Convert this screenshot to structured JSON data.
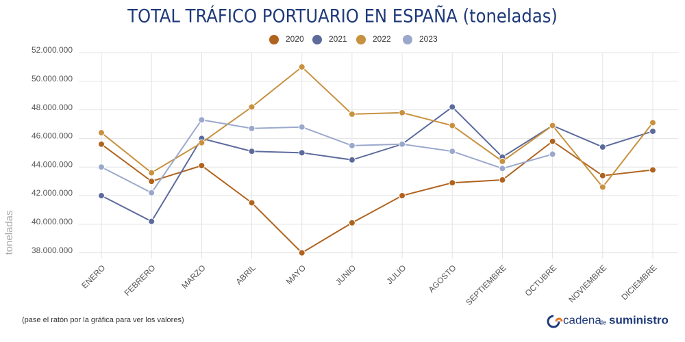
{
  "chart_data": {
    "type": "line",
    "title": "TOTAL TRÁFICO PORTUARIO EN ESPAÑA (toneladas)",
    "y_label": "toneladas",
    "note": "(pase el ratón por la gráfica para ver los valores)",
    "logo": {
      "part1": "cadena",
      "part2": "de",
      "part3": "suministro"
    },
    "categories": [
      "ENERO",
      "FEBRERO",
      "MARZO",
      "ABRIL",
      "MAYO",
      "JUNIO",
      "JULIO",
      "AGOSTO",
      "SEPTIEMBRE",
      "OCTUBRE",
      "NOVIEMBRE",
      "DICIEMBRE"
    ],
    "series": [
      {
        "name": "2020",
        "color": "#b0631f",
        "values": [
          45600000,
          43000000,
          44100000,
          41500000,
          38000000,
          40100000,
          42000000,
          42900000,
          43100000,
          45800000,
          43400000,
          43800000
        ]
      },
      {
        "name": "2021",
        "color": "#5c6a9c",
        "values": [
          42000000,
          40200000,
          46000000,
          45100000,
          45000000,
          44500000,
          45600000,
          48200000,
          44700000,
          46900000,
          45400000,
          46500000
        ]
      },
      {
        "name": "2022",
        "color": "#c8913f",
        "values": [
          46400000,
          43600000,
          45700000,
          48200000,
          51000000,
          47700000,
          47800000,
          46900000,
          44400000,
          46900000,
          42600000,
          47100000
        ]
      },
      {
        "name": "2023",
        "color": "#9aa8cc",
        "values": [
          44000000,
          42200000,
          47300000,
          46700000,
          46800000,
          45500000,
          45600000,
          45100000,
          43900000,
          44900000,
          null,
          null
        ]
      }
    ],
    "ylim": [
      37600000,
      52000000
    ],
    "yticks": [
      {
        "value": 38000000,
        "label": "38.000.000"
      },
      {
        "value": 40000000,
        "label": "40.000.000"
      },
      {
        "value": 42000000,
        "label": "42.000.000"
      },
      {
        "value": 44000000,
        "label": "44.000.000"
      },
      {
        "value": 46000000,
        "label": "46.000.000"
      },
      {
        "value": 48000000,
        "label": "48.000.000"
      },
      {
        "value": 50000000,
        "label": "50.000.000"
      },
      {
        "value": 52000000,
        "label": "52.000.000"
      }
    ],
    "grid": true
  }
}
